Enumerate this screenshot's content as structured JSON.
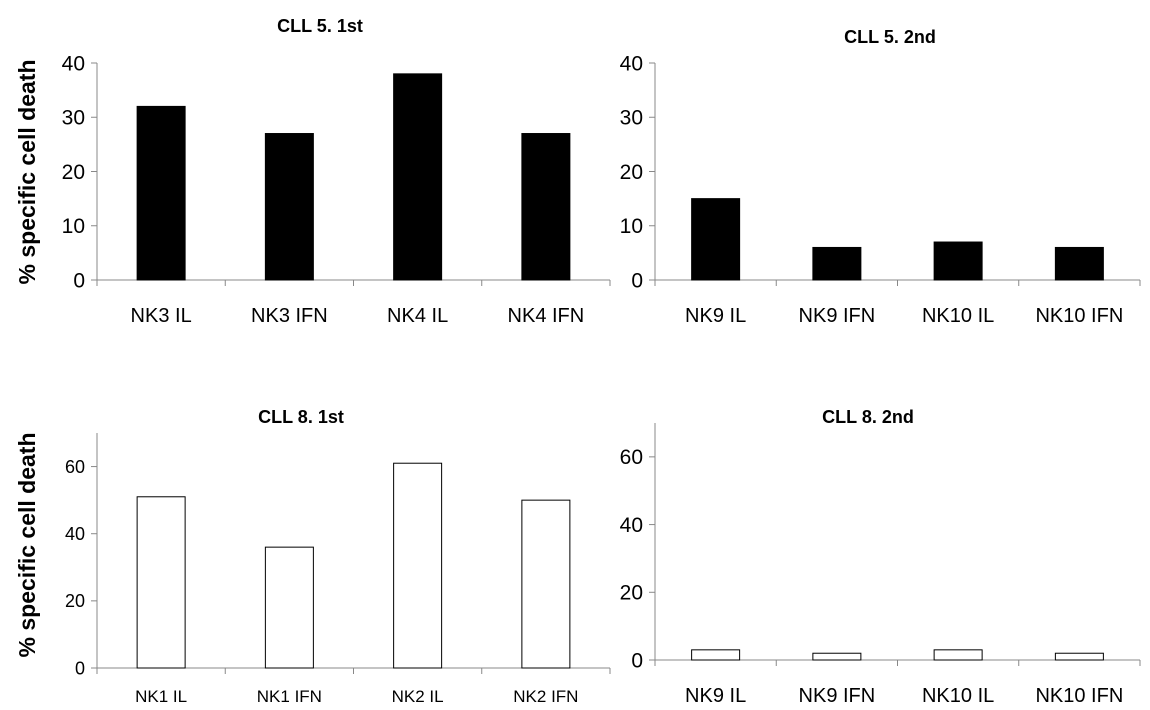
{
  "chart_data": [
    {
      "type": "bar",
      "title": "CLL 5. 1st",
      "ylabel": "% specific cell death",
      "xlabel": "",
      "categories": [
        "NK3 IL",
        "NK3 IFN",
        "NK4 IL",
        "NK4 IFN"
      ],
      "values": [
        32,
        27,
        38,
        27
      ],
      "ylim": [
        0,
        40
      ],
      "yticks": [
        "0",
        "10",
        "20",
        "30",
        "40"
      ],
      "bar_color": "#000000",
      "grid": false
    },
    {
      "type": "bar",
      "title": "CLL 5. 2nd",
      "ylabel": "",
      "xlabel": "",
      "categories": [
        "NK9 IL",
        "NK9 IFN",
        "NK10 IL",
        "NK10 IFN"
      ],
      "values": [
        15,
        6,
        7,
        6
      ],
      "ylim": [
        0,
        40
      ],
      "yticks": [
        "0",
        "10",
        "20",
        "30",
        "40"
      ],
      "bar_color": "#000000",
      "grid": false
    },
    {
      "type": "bar",
      "title": "CLL 8. 1st",
      "ylabel": "% specific cell death",
      "xlabel": "",
      "categories": [
        "NK1 IL",
        "NK1 IFN",
        "NK2 IL",
        "NK2 IFN"
      ],
      "values": [
        51,
        36,
        61,
        50
      ],
      "ylim": [
        0,
        70
      ],
      "yticks": [
        "0",
        "20",
        "40",
        "60"
      ],
      "bar_color": "#ffffff",
      "grid": false
    },
    {
      "type": "bar",
      "title": "CLL 8. 2nd",
      "ylabel": "",
      "xlabel": "",
      "categories": [
        "NK9 IL",
        "NK9 IFN",
        "NK10 IL",
        "NK10 IFN"
      ],
      "values": [
        3,
        2,
        3,
        2
      ],
      "ylim": [
        0,
        70
      ],
      "yticks": [
        "0",
        "20",
        "40",
        "60"
      ],
      "bar_color": "#ffffff",
      "grid": false
    }
  ]
}
